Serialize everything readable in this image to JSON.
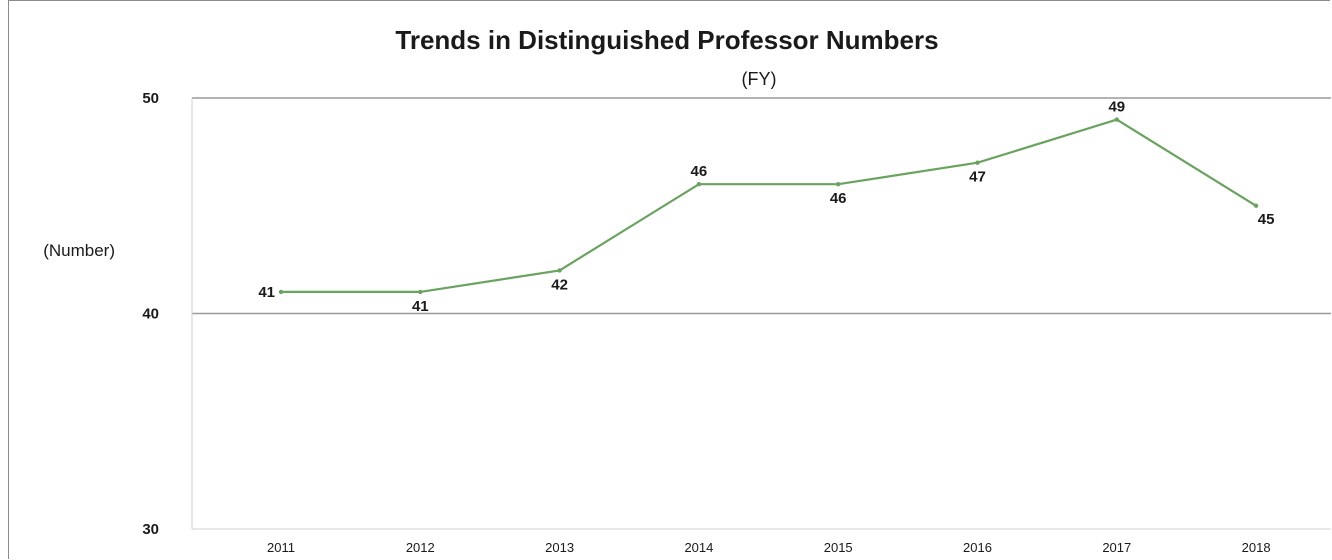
{
  "chart_data": {
    "type": "line",
    "title": "Trends in Distinguished Professor Numbers",
    "xlabel": "(FY)",
    "ylabel": "(Number)",
    "categories": [
      "2011",
      "2012",
      "2013",
      "2014",
      "2015",
      "2016",
      "2017",
      "2018"
    ],
    "series": [
      {
        "values": [
          41,
          41,
          42,
          46,
          46,
          47,
          49,
          45
        ]
      }
    ],
    "ylim": [
      30,
      50
    ],
    "yticks": [
      "30",
      "40",
      "50"
    ],
    "grid": true,
    "line_color": "#6aa260"
  }
}
